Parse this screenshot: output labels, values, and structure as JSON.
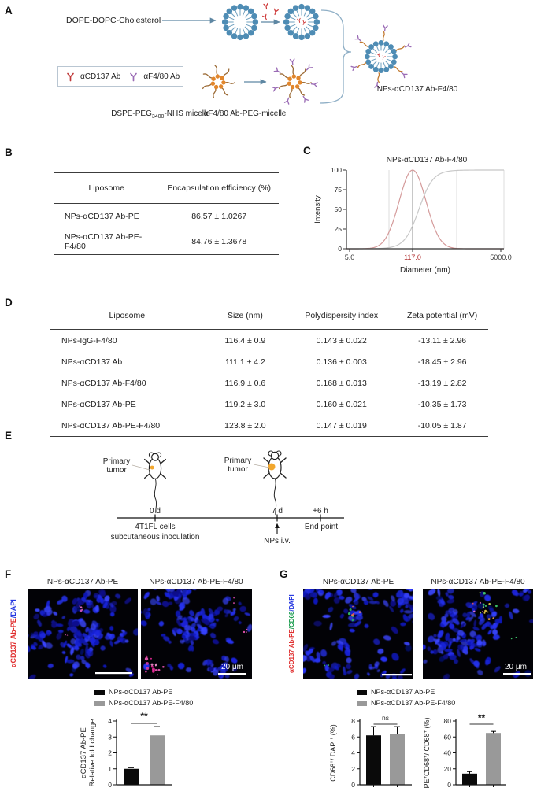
{
  "figure": {
    "panel_a": {
      "label": "A",
      "input_label": "DOPE-DOPC-Cholesterol",
      "legend_items": [
        {
          "label": "αCD137 Ab",
          "color": "#c03a3a"
        },
        {
          "label": "αF4/80 Ab",
          "color": "#9a6bb5"
        }
      ],
      "micelle1_label_main": "DSPE-PEG",
      "micelle1_label_sub": "3400",
      "micelle1_label_tail": "-NHS micelle",
      "micelle2_label": "αF4/80 Ab-PEG-micelle",
      "product_label": "NPs-αCD137 Ab-F4/80"
    },
    "panel_b": {
      "label": "B",
      "table": {
        "headers": [
          "Liposome",
          "Encapsulation efficiency (%)"
        ],
        "rows": [
          [
            "NPs-αCD137 Ab-PE",
            "86.57 ± 1.0267"
          ],
          [
            "NPs-αCD137 Ab-PE-F4/80",
            "84.76 ± 1.3678"
          ]
        ]
      }
    },
    "panel_c": {
      "label": "C"
    },
    "panel_d": {
      "label": "D",
      "table": {
        "headers": [
          "Liposome",
          "Size (nm)",
          "Polydispersity index",
          "Zeta potential (mV)"
        ],
        "rows": [
          [
            "NPs-IgG-F4/80",
            "116.4 ± 0.9",
            "0.143 ± 0.022",
            "-13.11 ± 2.96"
          ],
          [
            "NPs-αCD137 Ab",
            "111.1 ± 4.2",
            "0.136 ± 0.003",
            "-18.45 ± 2.96"
          ],
          [
            "NPs-αCD137 Ab-F4/80",
            "116.9 ± 0.6",
            "0.168 ± 0.013",
            "-13.19 ± 2.82"
          ],
          [
            "NPs-αCD137 Ab-PE",
            "119.2 ± 3.0",
            "0.160 ± 0.021",
            "-10.35 ± 1.73"
          ],
          [
            "NPs-αCD137 Ab-PE-F4/80",
            "123.8 ± 2.0",
            "0.147 ± 0.019",
            "-10.05 ± 1.87"
          ]
        ]
      }
    },
    "panel_e": {
      "label": "E",
      "mouse1_annotation_line1": "Primary",
      "mouse1_annotation_line2": "tumor",
      "mouse2_annotation_line1": "Primary",
      "mouse2_annotation_line2": "tumor",
      "timeline": {
        "tick1": "0 d",
        "tick2": "7 d",
        "tick3": "+6 h",
        "event1_line1": "4T1FL cells",
        "event1_line2": "subcutaneous inoculation",
        "event2": "NPs i.v.",
        "event3": "End point"
      }
    },
    "panel_f": {
      "label": "F",
      "image_titles": [
        "NPs-αCD137 Ab-PE",
        "NPs-αCD137 Ab-PE-F4/80"
      ],
      "side_label_parts": [
        {
          "text": "αCD137 Ab-PE",
          "color": "#e03030"
        },
        {
          "text": "/DAPI",
          "color": "#2436e0"
        }
      ],
      "scalebar": "20 μm",
      "legend": [
        "NPs-αCD137 Ab-PE",
        "NPs-αCD137 Ab-PE-F4/80"
      ]
    },
    "panel_g": {
      "label": "G",
      "image_titles": [
        "NPs-αCD137 Ab-PE",
        "NPs-αCD137 Ab-PE-F4/80"
      ],
      "side_label_parts": [
        {
          "text": "αCD137 Ab-PE",
          "color": "#e03030"
        },
        {
          "text": "/CD68",
          "color": "#169a4a"
        },
        {
          "text": "/DAPI",
          "color": "#2436e0"
        }
      ],
      "scalebar": "20 μm",
      "legend": [
        "NPs-αCD137 Ab-PE",
        "NPs-αCD137 Ab-PE-F4/80"
      ]
    }
  },
  "chart_data": [
    {
      "id": "size_distribution",
      "type": "line",
      "title": "NPs-αCD137 Ab-F4/80",
      "xlabel": "Diameter (nm)",
      "ylabel": "Intensity",
      "x_scale": "log",
      "xlim": [
        5.0,
        5000.0
      ],
      "ylim": [
        0,
        100
      ],
      "yticks": [
        100,
        75,
        50,
        25,
        0
      ],
      "xtick_labels": [
        "5.0",
        "117.0",
        "5000.0"
      ],
      "xtick_colors": [
        "#333333",
        "#b03030",
        "#333333"
      ],
      "peak_diameter_nm": 117.0,
      "series": [
        {
          "name": "intensity distribution",
          "shape": "peak",
          "color": "#d49a9a"
        },
        {
          "name": "cumulative intensity",
          "shape": "sigmoid",
          "color": "#c8c8c8"
        }
      ]
    },
    {
      "id": "fold_change",
      "type": "bar",
      "categories": [
        "NPs-αCD137 Ab-PE",
        "NPs-αCD137 Ab-PE-F4/80"
      ],
      "values": [
        1.0,
        3.1
      ],
      "errors": [
        0.07,
        0.55
      ],
      "bar_colors": [
        "#0a0a0a",
        "#999999"
      ],
      "yticks": [
        0,
        1,
        2,
        3,
        4
      ],
      "ylim": [
        0,
        4
      ],
      "ylabel": "αCD137 Ab-PE Relative fold change",
      "ylabel_lines": [
        "αCD137 Ab-PE",
        "Relative fold change"
      ],
      "significance": "**"
    },
    {
      "id": "cd68_dapi",
      "type": "bar",
      "categories": [
        "NPs-αCD137 Ab-PE",
        "NPs-αCD137 Ab-PE-F4/80"
      ],
      "values": [
        6.2,
        6.4
      ],
      "errors": [
        1.1,
        0.9
      ],
      "bar_colors": [
        "#0a0a0a",
        "#999999"
      ],
      "yticks": [
        0,
        2,
        4,
        6,
        8
      ],
      "ylim": [
        0,
        8
      ],
      "ylabel": "CD68+/ DAPI+ (%)",
      "ylabel_segments": [
        {
          "t": "CD68"
        },
        {
          "t": "+",
          "sup": true
        },
        {
          "t": "/ DAPI"
        },
        {
          "t": "+",
          "sup": true
        },
        {
          "t": " (%)"
        }
      ],
      "significance": "ns"
    },
    {
      "id": "pe_cd68",
      "type": "bar",
      "categories": [
        "NPs-αCD137 Ab-PE",
        "NPs-αCD137 Ab-PE-F4/80"
      ],
      "values": [
        14,
        65
      ],
      "errors": [
        2.5,
        2
      ],
      "bar_colors": [
        "#0a0a0a",
        "#999999"
      ],
      "yticks": [
        0,
        20,
        40,
        60,
        80
      ],
      "ylim": [
        0,
        80
      ],
      "ylabel": "PE+CD68+/ CD68+ (%)",
      "ylabel_segments": [
        {
          "t": "PE"
        },
        {
          "t": "+",
          "sup": true
        },
        {
          "t": "CD68"
        },
        {
          "t": "+",
          "sup": true
        },
        {
          "t": "/ CD68"
        },
        {
          "t": "+",
          "sup": true
        },
        {
          "t": " (%)"
        }
      ],
      "significance": "**"
    }
  ]
}
